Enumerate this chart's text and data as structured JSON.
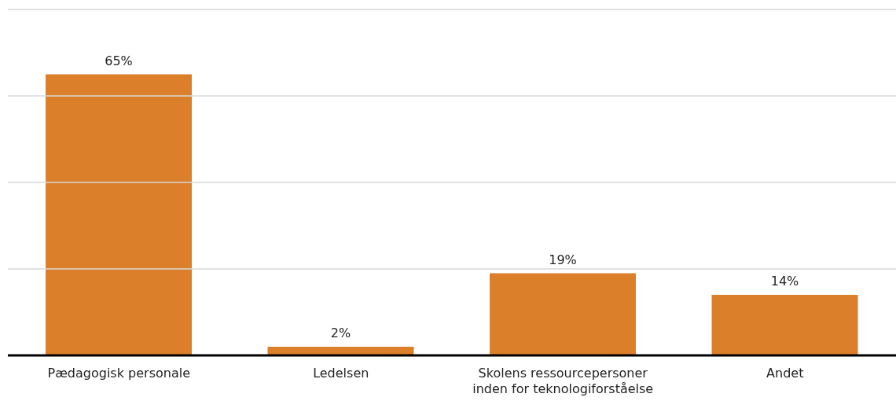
{
  "chart_data": {
    "type": "bar",
    "categories": [
      "Pædagogisk personale",
      "Ledelsen",
      "Skolens ressourcepersoner inden for teknologiforståelse",
      "Andet"
    ],
    "values": [
      65,
      2,
      19,
      14
    ],
    "value_labels": [
      "65%",
      "2%",
      "19%",
      "14%"
    ],
    "color": "#db7f2a",
    "ylim": [
      0,
      80
    ],
    "yticks": [
      {
        "value": 0,
        "label": null
      },
      {
        "value": 20,
        "label": null
      },
      {
        "value": 40,
        "label": null
      },
      {
        "value": 60,
        "label": null
      },
      {
        "value": 80,
        "label": null
      }
    ],
    "grid": "y",
    "tick_labels": "x"
  }
}
